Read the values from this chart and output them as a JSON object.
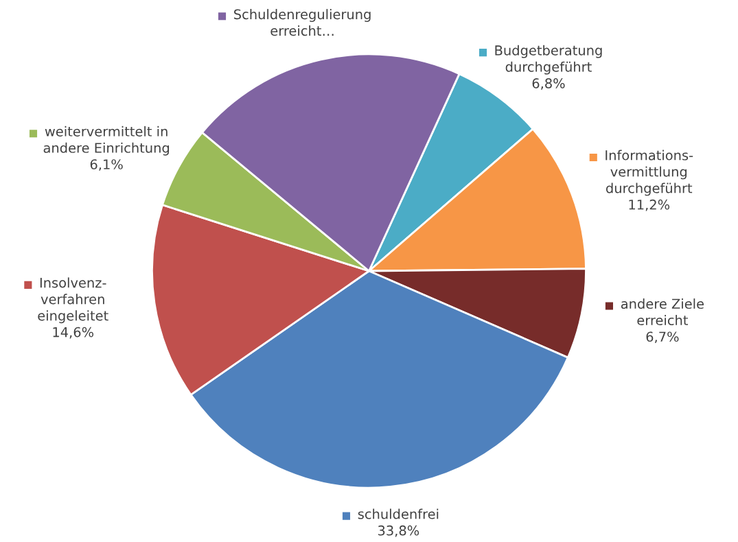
{
  "chart_data": {
    "type": "pie",
    "categories": [
      "Budgetberatung\ndurchgeführt",
      "Informations-\nvermittlung\ndurchgeführt",
      "andere Ziele\nerreicht",
      "schuldenfrei",
      "Insolvenz-\nverfahren\neingeleitet",
      "weitervermittelt in\nandere Einrichtung",
      "Schuldenregulierung\nerreicht…"
    ],
    "values": [
      6.8,
      11.2,
      6.7,
      33.8,
      14.6,
      6.1,
      20.8
    ],
    "value_labels": [
      "6,8%",
      "11,2%",
      "6,7%",
      "33,8%",
      "14,6%",
      "6,1%",
      null
    ],
    "colors": [
      "#4bacc6",
      "#f79646",
      "#772c2a",
      "#4f81bd",
      "#c0504d",
      "#9bbb59",
      "#8064a2"
    ],
    "legend": "right"
  }
}
